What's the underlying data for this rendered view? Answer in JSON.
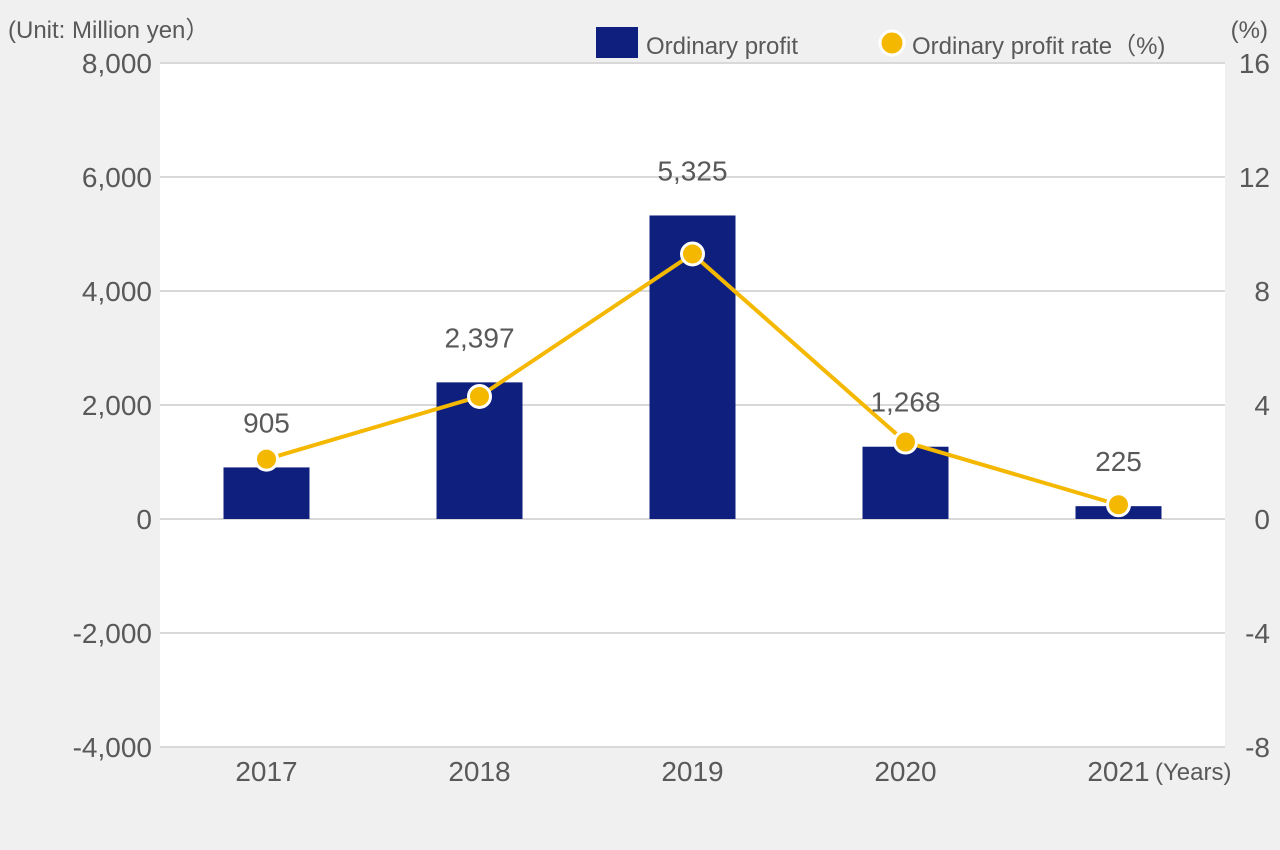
{
  "chart_data": {
    "type": "bar+line",
    "categories": [
      "2017",
      "2018",
      "2019",
      "2020",
      "2021"
    ],
    "x_unit": "(Years)",
    "series": [
      {
        "name": "Ordinary profit",
        "type": "bar",
        "axis": "left",
        "values": [
          905,
          2397,
          5325,
          1268,
          225
        ],
        "data_labels": [
          "905",
          "2,397",
          "5,325",
          "1,268",
          "225"
        ],
        "color": "#0f1f7d"
      },
      {
        "name": "Ordinary profit rate（%)",
        "type": "line",
        "axis": "right",
        "values": [
          2.1,
          4.3,
          9.3,
          2.7,
          0.5
        ],
        "color": "#f5b800"
      }
    ],
    "left_axis": {
      "unit_label": "(Unit: Million yen）",
      "ylim": [
        -4000,
        8000
      ],
      "ticks": [
        8000,
        6000,
        4000,
        2000,
        0,
        -2000,
        -4000
      ],
      "tick_labels": [
        "8,000",
        "6,000",
        "4,000",
        "2,000",
        "0",
        "-2,000",
        "-4,000"
      ]
    },
    "right_axis": {
      "unit_label": "(%)",
      "ylim": [
        -8,
        16
      ],
      "ticks": [
        16,
        12,
        8,
        4,
        0,
        -4,
        -8
      ],
      "tick_labels": [
        "16",
        "12",
        "8",
        "4",
        "0",
        "-4",
        "-8"
      ]
    },
    "legend_position": "top-right",
    "grid": true
  }
}
